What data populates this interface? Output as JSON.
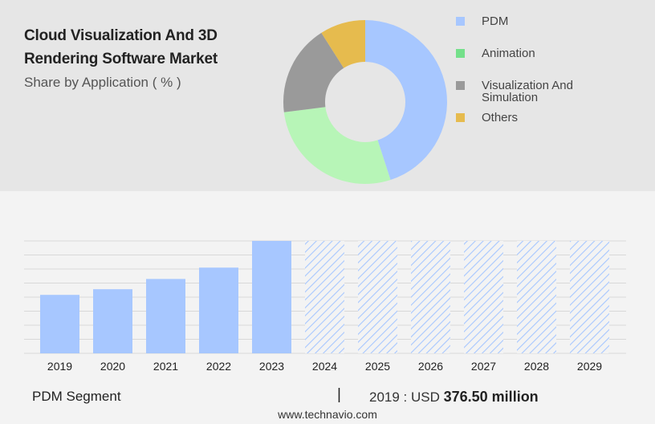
{
  "header": {
    "title": "Cloud Visualization And 3D Rendering Software Market",
    "subtitle": "Share by Application ( % )"
  },
  "donut": {
    "segments": [
      {
        "label": "PDM",
        "share": 45,
        "color": "#a7c7ff"
      },
      {
        "label": "Animation",
        "share": 28,
        "color": "#b7f5b7"
      },
      {
        "label": "Visualization And Simulation",
        "share": 18,
        "color": "#9a9a9a"
      },
      {
        "label": "Others",
        "share": 9,
        "color": "#e6bb4e"
      }
    ]
  },
  "legend": {
    "items": [
      {
        "label": "PDM",
        "color": "#a7c7ff"
      },
      {
        "label": "Animation",
        "color": "#74e08a"
      },
      {
        "label": "Visualization And Simulation",
        "color": "#9a9a9a"
      },
      {
        "label": "Others",
        "color": "#e6bb4e"
      }
    ]
  },
  "chart_data": {
    "type": "bar",
    "categories": [
      "2019",
      "2020",
      "2021",
      "2022",
      "2023",
      "2024",
      "2025",
      "2026",
      "2027",
      "2028",
      "2029"
    ],
    "values": [
      376.5,
      413,
      479,
      552,
      724,
      724,
      724,
      724,
      724,
      724,
      724
    ],
    "forecast_from_index": 5,
    "bar_color": "#a7c7ff",
    "forecast_pattern": "diagonal-hatch",
    "ylim": [
      0,
      724
    ],
    "grid": true,
    "title": "",
    "xlabel": "",
    "ylabel": ""
  },
  "footer": {
    "segment": "PDM Segment",
    "divider": "|",
    "value_prefix": "2019 : USD",
    "value": "376.50 million",
    "source": "www.technavio.com"
  }
}
